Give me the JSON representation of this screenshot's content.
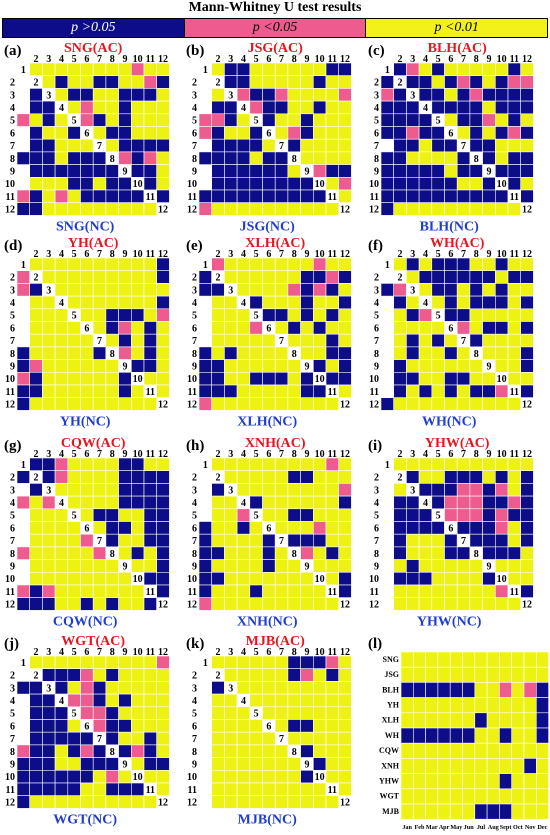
{
  "title": "Mann-Whitney U test results",
  "legend": [
    {
      "label": "p >0.05",
      "color": "#0d0d8a",
      "text_color": "#ffffff"
    },
    {
      "label": "p <0.05",
      "color": "#ee5b8e",
      "text_color": "#000000"
    },
    {
      "label": "p <0.01",
      "color": "#f2f21a",
      "text_color": "#000000"
    }
  ],
  "colors": {
    "blue": "#0d0d8a",
    "pink": "#ee5b8e",
    "yellow": "#eef212",
    "diag": "#ffffff",
    "ac_label": "#e8141e",
    "nc_label": "#1e3cd2"
  },
  "chart_data": [
    {
      "type": "heatmap",
      "panel": "(a)",
      "title": "SNG(AC)",
      "xlabel": "SNG(NC)",
      "ticks": [
        "1",
        "2",
        "3",
        "4",
        "5",
        "6",
        "7",
        "8",
        "9",
        "10",
        "11",
        "12"
      ],
      "matrix": [
        "1........P..",
        "0B.B..BB..PB",
        "0BB.BB..BBB.",
        "0BBB.P..B...",
        "P.B..PB.B...",
        "0B..B..BB...",
        "0BB...B.BBBB",
        "BBB.BBB.PBP.",
        "0BBBBBBB.BB.",
        "0...BB.BB.B.",
        "PB.P.BBBBB.B",
        "BB.........."
      ]
    },
    {
      "type": "heatmap",
      "panel": "(b)",
      "title": "JSG(AC)",
      "xlabel": "JSG(NC)",
      "ticks": [
        "1",
        "2",
        "3",
        "4",
        "5",
        "6",
        "7",
        "8",
        "9",
        "10",
        "11",
        "12"
      ],
      "matrix": [
        "1.BB......BB",
        "0BBB.....B..",
        "0.BPBBP....P",
        "0BBBPBB..B..",
        "PPB.PB..B...",
        "PB..B..PB...",
        "0BBBB.PB....",
        "BBBB.BB.....",
        "0BBBBBB..PBB",
        "0BBBBBBBBB.P",
        "BBBBBBBBBBB.",
        "P..........."
      ]
    },
    {
      "type": "heatmap",
      "panel": "(c)",
      "title": "BLH(AC)",
      "xlabel": "BLH(NC)",
      "ticks": [
        "1",
        "2",
        "3",
        "4",
        "5",
        "6",
        "7",
        "8",
        "9",
        "10",
        "11",
        "12"
      ],
      "matrix": [
        "1BP.B.....B.",
        "BBBB.BPB.BPP",
        "PBBBB.BPBBBB",
        "BBBBBBBB.BBB",
        "BBBBB.BBP.B.",
        "BBPBBB.B.BPB",
        "0BB.BB.BB...",
        "BB....B.B.BB",
        "BBBBB.BB.BBB",
        "BBBBBB..B.B.",
        "BBBBBBBBBBBB",
        "B..........."
      ]
    },
    {
      "type": "heatmap",
      "panel": "(d)",
      "title": "YH(AC)",
      "xlabel": "YH(NC)",
      "ticks": [
        "1",
        "2",
        "3",
        "4",
        "5",
        "6",
        "7",
        "8",
        "9",
        "10",
        "11",
        "12"
      ],
      "matrix": [
        "1..........B",
        "PB.........B",
        "PBP.........",
        "0..........B",
        "0......BBB.P",
        "0....B.BP.B.",
        "0.......B.B.",
        "B.....BBP.B.",
        "BP.......BB.",
        "PB......BP..",
        "BB......B.P.",
        "B..........."
      ]
    },
    {
      "type": "heatmap",
      "panel": "(e)",
      "title": "XLH(AC)",
      "xlabel": "XLH(NC)",
      "ticks": [
        "1",
        "2",
        "3",
        "4",
        "5",
        "6",
        "7",
        "8",
        "9",
        "10",
        "11",
        "12"
      ],
      "matrix": [
        "1P.......P..",
        "BP......BBPB",
        "BB.....PBPB.",
        "0...B...B..B",
        "0...BBB.B.B.",
        "0...PB.B.B..",
        "0.........B.",
        "B.B.......BB",
        "BB.......B.B",
        "BB..BBB.B.BB",
        "BBB.....BB..",
        "P..........."
      ]
    },
    {
      "type": "heatmap",
      "panel": "(f)",
      "title": "WH(AC)",
      "xlabel": "WH(NC)",
      "ticks": [
        "1",
        "2",
        "3",
        "4",
        "5",
        "6",
        "7",
        "8",
        "9",
        "10",
        "11",
        "12"
      ],
      "matrix": [
        "1.B.BBB..B..",
        "0..BBBBBB.BB",
        "BP..BB.B.B..",
        "0B...B.BBB.B",
        "0.BP.BB.....",
        "0.....P.BB.B",
        "0.B.B..B....",
        "0.B..B.B...B",
        "0B.........B",
        "0BB..BB.....",
        "0B.B.B.BBP.B",
        "B..........."
      ]
    },
    {
      "type": "heatmap",
      "panel": "(g)",
      "title": "CQW(AC)",
      "xlabel": "CQW(NC)",
      "ticks": [
        "1",
        "2",
        "3",
        "4",
        "5",
        "6",
        "7",
        "8",
        "9",
        "10",
        "11",
        "12"
      ],
      "matrix": [
        "1BBP....BB..",
        "BBBP....BBBB",
        "0BB.....BBBB",
        "P.P.....BBBB",
        "0.....BB..BB",
        "0......BB.BB",
        "0....P.B..BB",
        "P.....P..B.B",
        "0.......B..B",
        "0........BBB",
        "PBP........B",
        "BBB..B.B..B."
      ]
    },
    {
      "type": "heatmap",
      "panel": "(h)",
      "title": "XNH(AC)",
      "xlabel": "XNH(NC)",
      "ticks": [
        "1",
        "2",
        "3",
        "4",
        "5",
        "6",
        "7",
        "8",
        "9",
        "10",
        "11",
        "12"
      ],
      "matrix": [
        "1.........P.",
        "0B.....BB...",
        "0B.........P",
        "0..BB......B",
        "0..PB..BB...",
        "B..B.B...P..",
        "B....B.BBB..",
        "BB...B..P.B.",
        "B....B......",
        "BB.........B",
        "B...B......B",
        "P..........."
      ]
    },
    {
      "type": "heatmap",
      "panel": "(i)",
      "title": "YHW(AC)",
      "xlabel": "YHW(NC)",
      "ticks": [
        "1",
        "2",
        "3",
        "4",
        "5",
        "6",
        "7",
        "8",
        "9",
        "10",
        "11",
        "12"
      ],
      "matrix": [
        "1...........",
        "0BB..BBB.B.B",
        "0.BBBBPPBP.B",
        "0BBPBPPPBBPB",
        "0BBBBPPPBPBB",
        "0BBBBBBBBP.B",
        "0B...BBBBB.B",
        "0B...BBPBBB.",
        "0.B.....B...",
        "0BBB....BB..",
        "0........PBB",
        "0..........."
      ]
    },
    {
      "type": "heatmap",
      "panel": "(j)",
      "title": "WGT(AC)",
      "xlabel": "WGT(NC)",
      "ticks": [
        "1",
        "2",
        "3",
        "4",
        "5",
        "6",
        "7",
        "8",
        "9",
        "10",
        "11",
        "12"
      ],
      "matrix": [
        "1..........P",
        "0.BBBP.B....",
        "BBBB.PB.....",
        "0BB.PPB.B...",
        "0BBBPPPB....",
        "0BBB.PPBB...",
        "0BBBBBBB..B.",
        "PBB.BPBPBPB.",
        "BBB..BBBB.BB",
        "BBBBBB.P.B..",
        "BBBBB..BBBP.",
        "B..........."
      ]
    },
    {
      "type": "heatmap",
      "panel": "(k)",
      "title": "MJB(AC)",
      "xlabel": "MJB(NC)",
      "ticks": [
        "1",
        "2",
        "3",
        "4",
        "5",
        "6",
        "7",
        "8",
        "9",
        "10",
        "11",
        "12"
      ],
      "matrix": [
        "1......BBBP.",
        "0B.....BP.B.",
        "0BB.........",
        "0...........",
        "0...........",
        "0......BB...",
        "0.....P.....",
        "0.......B...",
        "0.......BB..",
        "0.......B...",
        "0...........",
        "0..........."
      ]
    },
    {
      "type": "heatmap",
      "panel": "(l)",
      "rows": [
        "SNG",
        "JSG",
        "BLH",
        "YH",
        "XLH",
        "WH",
        "CQW",
        "XNH",
        "YHW",
        "WGT",
        "MJB"
      ],
      "columns": [
        "Jan",
        "Feb",
        "Mar",
        "Apr",
        "May",
        "Jun",
        "Jul",
        "Aug",
        "Sept",
        "Oct",
        "Nov",
        "Dec"
      ],
      "matrix": [
        "............",
        "............",
        "BBBBBB..P.PB",
        "...........B",
        "......B....B",
        "BBBBBB..B..B",
        "............",
        "..........B.",
        "........B...",
        "............",
        "......BBB..."
      ]
    }
  ]
}
